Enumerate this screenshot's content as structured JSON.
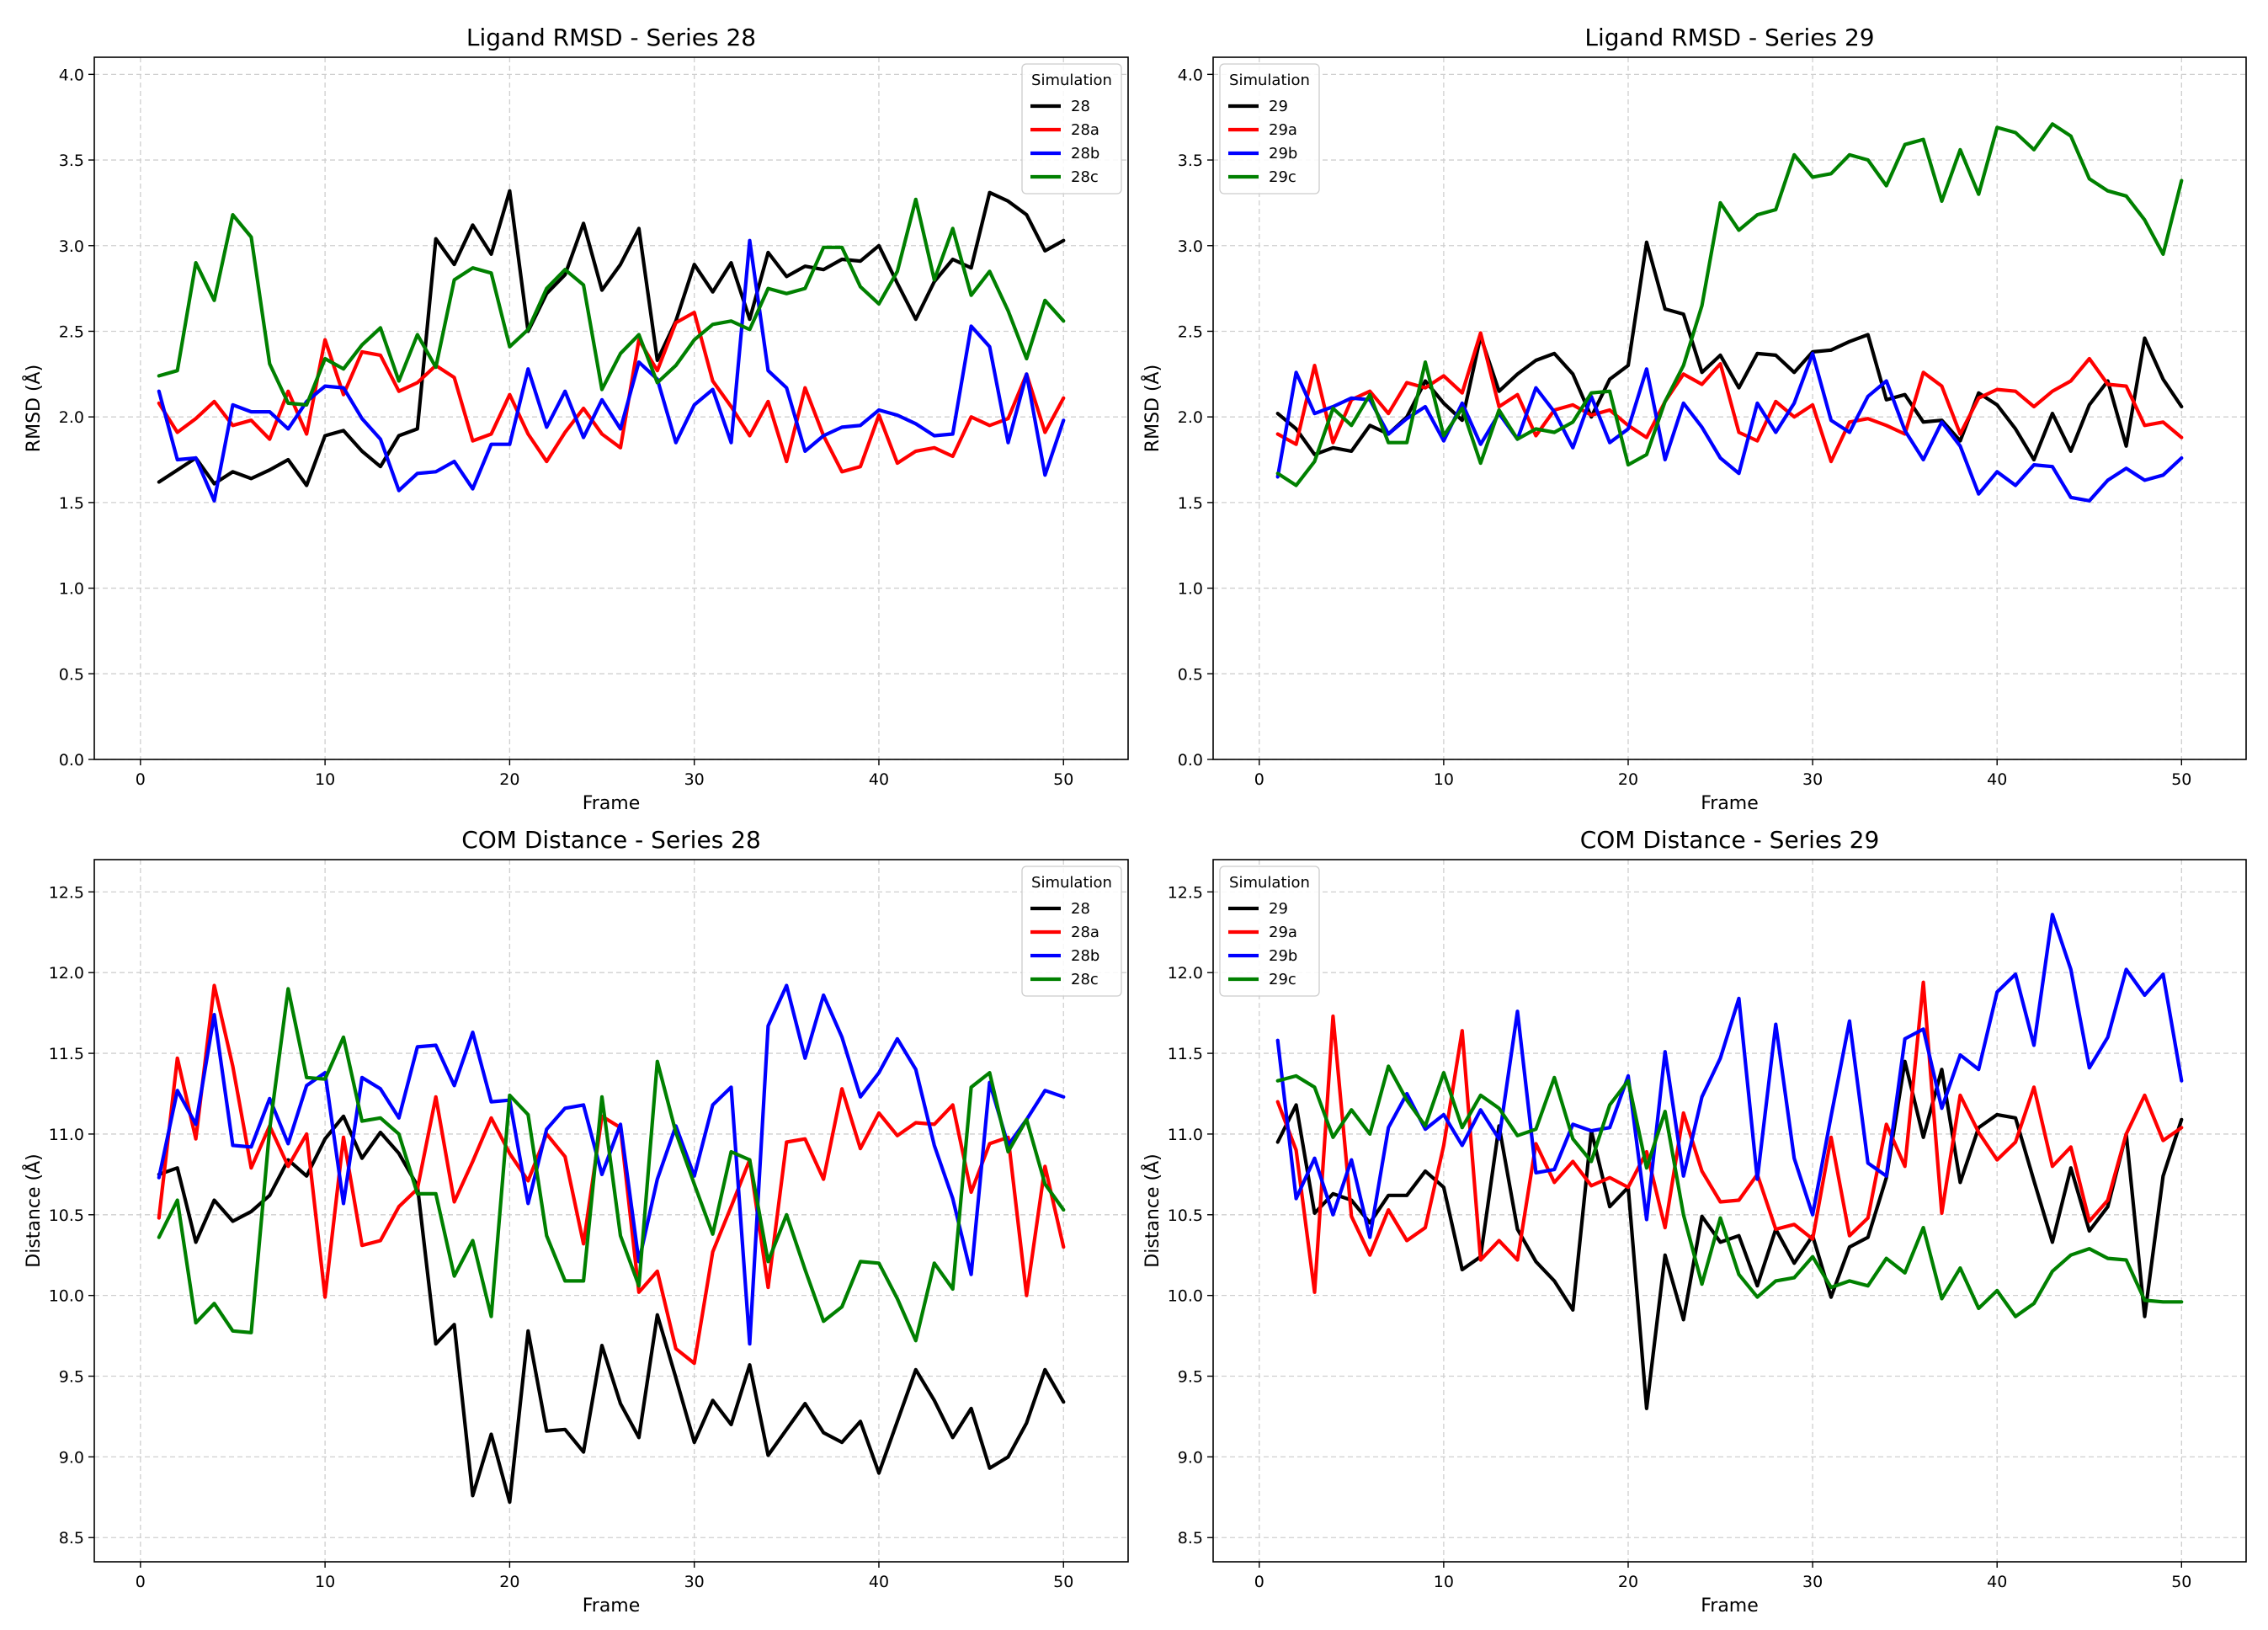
{
  "chart_data": [
    {
      "type": "line",
      "title": "Ligand RMSD - Series 28",
      "xlabel": "Frame",
      "ylabel": "RMSD (Å)",
      "xlim": [
        -2.5,
        53.5
      ],
      "ylim": [
        0,
        4.1
      ],
      "xticks": [
        0,
        10,
        20,
        30,
        40,
        50
      ],
      "yticks": [
        0.0,
        0.5,
        1.0,
        1.5,
        2.0,
        2.5,
        3.0,
        3.5,
        4.0
      ],
      "ytick_labels": [
        "0.0",
        "0.5",
        "1.0",
        "1.5",
        "2.0",
        "2.5",
        "3.0",
        "3.5",
        "4.0"
      ],
      "grid": true,
      "legend": {
        "title": "Simulation",
        "loc": "top-right"
      },
      "series": [
        {
          "name": "28",
          "color": "#000000",
          "values": [
            1.62,
            1.69,
            1.76,
            1.61,
            1.68,
            1.64,
            1.69,
            1.75,
            1.6,
            1.89,
            1.92,
            1.8,
            1.71,
            1.89,
            1.93,
            3.04,
            2.89,
            3.12,
            2.95,
            3.32,
            2.5,
            2.72,
            2.83,
            3.13,
            2.74,
            2.89,
            3.1,
            2.33,
            2.56,
            2.89,
            2.73,
            2.9,
            2.57,
            2.96,
            2.82,
            2.88,
            2.86,
            2.92,
            2.91,
            3.0,
            2.78,
            2.57,
            2.79,
            2.92,
            2.87,
            3.31,
            3.26,
            3.18,
            2.97,
            3.03
          ]
        },
        {
          "name": "28a",
          "color": "#ff0000",
          "values": [
            2.08,
            1.91,
            1.99,
            2.09,
            1.95,
            1.98,
            1.87,
            2.15,
            1.9,
            2.45,
            2.13,
            2.38,
            2.36,
            2.15,
            2.2,
            2.3,
            2.23,
            1.86,
            1.9,
            2.13,
            1.9,
            1.74,
            1.91,
            2.05,
            1.9,
            1.82,
            2.45,
            2.27,
            2.55,
            2.61,
            2.21,
            2.06,
            1.89,
            2.09,
            1.74,
            2.17,
            1.89,
            1.68,
            1.71,
            2.01,
            1.73,
            1.8,
            1.82,
            1.77,
            2.0,
            1.95,
            1.99,
            2.25,
            1.91,
            2.11
          ]
        },
        {
          "name": "28b",
          "color": "#0000ff",
          "values": [
            2.15,
            1.75,
            1.76,
            1.51,
            2.07,
            2.03,
            2.03,
            1.93,
            2.09,
            2.18,
            2.17,
            1.99,
            1.87,
            1.57,
            1.67,
            1.68,
            1.74,
            1.58,
            1.84,
            1.84,
            2.28,
            1.94,
            2.15,
            1.88,
            2.1,
            1.93,
            2.32,
            2.22,
            1.85,
            2.07,
            2.16,
            1.85,
            3.03,
            2.27,
            2.17,
            1.8,
            1.89,
            1.94,
            1.95,
            2.04,
            2.01,
            1.96,
            1.89,
            1.9,
            2.53,
            2.41,
            1.85,
            2.25,
            1.66,
            1.98
          ]
        },
        {
          "name": "28c",
          "color": "#008000",
          "values": [
            2.24,
            2.27,
            2.9,
            2.68,
            3.18,
            3.05,
            2.31,
            2.08,
            2.07,
            2.34,
            2.28,
            2.42,
            2.52,
            2.21,
            2.48,
            2.29,
            2.8,
            2.87,
            2.84,
            2.41,
            2.51,
            2.75,
            2.86,
            2.77,
            2.16,
            2.37,
            2.48,
            2.2,
            2.3,
            2.45,
            2.54,
            2.56,
            2.51,
            2.75,
            2.72,
            2.75,
            2.99,
            2.99,
            2.76,
            2.66,
            2.85,
            3.27,
            2.8,
            3.1,
            2.71,
            2.85,
            2.62,
            2.34,
            2.68,
            2.56
          ]
        }
      ]
    },
    {
      "type": "line",
      "title": "Ligand RMSD - Series 29",
      "xlabel": "Frame",
      "ylabel": "RMSD (Å)",
      "xlim": [
        -2.5,
        53.5
      ],
      "ylim": [
        0,
        4.1
      ],
      "xticks": [
        0,
        10,
        20,
        30,
        40,
        50
      ],
      "yticks": [
        0.0,
        0.5,
        1.0,
        1.5,
        2.0,
        2.5,
        3.0,
        3.5,
        4.0
      ],
      "ytick_labels": [
        "0.0",
        "0.5",
        "1.0",
        "1.5",
        "2.0",
        "2.5",
        "3.0",
        "3.5",
        "4.0"
      ],
      "grid": true,
      "legend": {
        "title": "Simulation",
        "loc": "top-left"
      },
      "series": [
        {
          "name": "29",
          "color": "#000000",
          "values": [
            2.02,
            1.93,
            1.78,
            1.82,
            1.8,
            1.95,
            1.9,
            2.0,
            2.21,
            2.08,
            1.98,
            2.47,
            2.15,
            2.25,
            2.33,
            2.37,
            2.25,
            2.0,
            2.22,
            2.3,
            3.02,
            2.63,
            2.6,
            2.26,
            2.36,
            2.17,
            2.37,
            2.36,
            2.26,
            2.38,
            2.39,
            2.44,
            2.48,
            2.1,
            2.13,
            1.97,
            1.98,
            1.86,
            2.14,
            2.07,
            1.93,
            1.75,
            2.02,
            1.8,
            2.07,
            2.21,
            1.83,
            2.46,
            2.22,
            2.06
          ]
        },
        {
          "name": "29a",
          "color": "#ff0000",
          "values": [
            1.9,
            1.84,
            2.3,
            1.85,
            2.1,
            2.15,
            2.02,
            2.2,
            2.17,
            2.24,
            2.14,
            2.49,
            2.06,
            2.13,
            1.89,
            2.04,
            2.07,
            2.01,
            2.04,
            1.95,
            1.88,
            2.09,
            2.25,
            2.19,
            2.31,
            1.91,
            1.86,
            2.09,
            2.0,
            2.07,
            1.74,
            1.97,
            1.99,
            1.95,
            1.9,
            2.26,
            2.18,
            1.9,
            2.11,
            2.16,
            2.15,
            2.06,
            2.15,
            2.21,
            2.34,
            2.19,
            2.18,
            1.95,
            1.97,
            1.88
          ]
        },
        {
          "name": "29b",
          "color": "#0000ff",
          "values": [
            1.65,
            2.26,
            2.02,
            2.06,
            2.11,
            2.1,
            1.9,
            1.99,
            2.06,
            1.86,
            2.08,
            1.84,
            2.02,
            1.87,
            2.17,
            2.03,
            1.82,
            2.12,
            1.85,
            1.93,
            2.28,
            1.75,
            2.08,
            1.94,
            1.76,
            1.67,
            2.08,
            1.91,
            2.08,
            2.37,
            1.98,
            1.91,
            2.12,
            2.21,
            1.92,
            1.75,
            1.97,
            1.83,
            1.55,
            1.68,
            1.6,
            1.72,
            1.71,
            1.53,
            1.51,
            1.63,
            1.7,
            1.63,
            1.66,
            1.76
          ]
        },
        {
          "name": "29c",
          "color": "#008000",
          "values": [
            1.67,
            1.6,
            1.74,
            2.05,
            1.95,
            2.13,
            1.85,
            1.85,
            2.32,
            1.89,
            2.05,
            1.73,
            2.04,
            1.87,
            1.93,
            1.91,
            1.97,
            2.14,
            2.15,
            1.72,
            1.78,
            2.09,
            2.3,
            2.65,
            3.25,
            3.09,
            3.18,
            3.21,
            3.53,
            3.4,
            3.42,
            3.53,
            3.5,
            3.35,
            3.59,
            3.62,
            3.26,
            3.56,
            3.3,
            3.69,
            3.66,
            3.56,
            3.71,
            3.64,
            3.39,
            3.32,
            3.29,
            3.15,
            2.95,
            3.38
          ]
        }
      ]
    },
    {
      "type": "line",
      "title": "COM Distance - Series 28",
      "xlabel": "Frame",
      "ylabel": "Distance (Å)",
      "xlim": [
        -2.5,
        53.5
      ],
      "ylim": [
        8.35,
        12.7
      ],
      "xticks": [
        0,
        10,
        20,
        30,
        40,
        50
      ],
      "yticks": [
        8.5,
        9.0,
        9.5,
        10.0,
        10.5,
        11.0,
        11.5,
        12.0,
        12.5
      ],
      "ytick_labels": [
        "8.5",
        "9.0",
        "9.5",
        "10.0",
        "10.5",
        "11.0",
        "11.5",
        "12.0",
        "12.5"
      ],
      "grid": true,
      "legend": {
        "title": "Simulation",
        "loc": "top-right"
      },
      "series": [
        {
          "name": "28",
          "color": "#000000",
          "values": [
            10.75,
            10.79,
            10.33,
            10.59,
            10.46,
            10.52,
            10.62,
            10.84,
            10.74,
            10.97,
            11.11,
            10.85,
            11.01,
            10.88,
            10.68,
            9.7,
            9.82,
            8.76,
            9.14,
            8.72,
            9.78,
            9.16,
            9.17,
            9.03,
            9.69,
            9.33,
            9.12,
            9.88,
            9.49,
            9.09,
            9.35,
            9.2,
            9.57,
            9.01,
            9.17,
            9.33,
            9.15,
            9.09,
            9.22,
            8.9,
            9.22,
            9.54,
            9.35,
            9.12,
            9.3,
            8.93,
            9.0,
            9.21,
            9.54,
            9.34
          ]
        },
        {
          "name": "28a",
          "color": "#ff0000",
          "values": [
            10.48,
            11.47,
            10.97,
            11.92,
            11.42,
            10.79,
            11.05,
            10.8,
            11.0,
            9.99,
            10.98,
            10.31,
            10.34,
            10.55,
            10.66,
            11.23,
            10.58,
            10.83,
            11.1,
            10.88,
            10.71,
            11.0,
            10.86,
            10.32,
            11.11,
            11.04,
            10.02,
            10.15,
            9.67,
            9.58,
            10.27,
            10.55,
            10.84,
            10.05,
            10.95,
            10.97,
            10.72,
            11.28,
            10.91,
            11.13,
            10.99,
            11.07,
            11.06,
            11.18,
            10.64,
            10.94,
            10.98,
            10.0,
            10.8,
            10.3
          ]
        },
        {
          "name": "28b",
          "color": "#0000ff",
          "values": [
            10.73,
            11.27,
            11.06,
            11.74,
            10.93,
            10.92,
            11.22,
            10.94,
            11.3,
            11.38,
            10.57,
            11.35,
            11.28,
            11.1,
            11.54,
            11.55,
            11.3,
            11.63,
            11.2,
            11.21,
            10.57,
            11.03,
            11.16,
            11.18,
            10.75,
            11.06,
            10.21,
            10.72,
            11.05,
            10.74,
            11.18,
            11.29,
            9.7,
            11.67,
            11.92,
            11.47,
            11.86,
            11.6,
            11.23,
            11.38,
            11.59,
            11.4,
            10.93,
            10.6,
            10.13,
            11.32,
            10.93,
            11.09,
            11.27,
            11.23
          ]
        },
        {
          "name": "28c",
          "color": "#008000",
          "values": [
            10.36,
            10.59,
            9.83,
            9.95,
            9.78,
            9.77,
            11.03,
            11.9,
            11.35,
            11.34,
            11.6,
            11.08,
            11.1,
            11.0,
            10.63,
            10.63,
            10.12,
            10.34,
            9.87,
            11.24,
            11.12,
            10.37,
            10.09,
            10.09,
            11.23,
            10.37,
            10.06,
            11.45,
            11.01,
            10.69,
            10.38,
            10.89,
            10.84,
            10.21,
            10.5,
            10.16,
            9.84,
            9.93,
            10.21,
            10.2,
            9.98,
            9.72,
            10.2,
            10.04,
            11.29,
            11.38,
            10.89,
            11.09,
            10.69,
            10.53
          ]
        }
      ]
    },
    {
      "type": "line",
      "title": "COM Distance - Series 29",
      "xlabel": "Frame",
      "ylabel": "Distance (Å)",
      "xlim": [
        -2.5,
        53.5
      ],
      "ylim": [
        8.35,
        12.7
      ],
      "xticks": [
        0,
        10,
        20,
        30,
        40,
        50
      ],
      "yticks": [
        8.5,
        9.0,
        9.5,
        10.0,
        10.5,
        11.0,
        11.5,
        12.0,
        12.5
      ],
      "ytick_labels": [
        "8.5",
        "9.0",
        "9.5",
        "10.0",
        "10.5",
        "11.0",
        "11.5",
        "12.0",
        "12.5"
      ],
      "grid": true,
      "legend": {
        "title": "Simulation",
        "loc": "top-left"
      },
      "series": [
        {
          "name": "29",
          "color": "#000000",
          "values": [
            10.95,
            11.18,
            10.51,
            10.63,
            10.59,
            10.45,
            10.62,
            10.62,
            10.77,
            10.67,
            10.16,
            10.24,
            11.05,
            10.41,
            10.21,
            10.09,
            9.91,
            11.02,
            10.55,
            10.67,
            9.3,
            10.25,
            9.85,
            10.49,
            10.33,
            10.37,
            10.06,
            10.41,
            10.2,
            10.37,
            9.99,
            10.3,
            10.36,
            10.73,
            11.45,
            10.98,
            11.4,
            10.7,
            11.04,
            11.12,
            11.1,
            10.71,
            10.33,
            10.79,
            10.4,
            10.55,
            11.0,
            9.87,
            10.74,
            11.09
          ]
        },
        {
          "name": "29a",
          "color": "#ff0000",
          "values": [
            11.2,
            10.9,
            10.02,
            11.73,
            10.49,
            10.25,
            10.53,
            10.34,
            10.42,
            10.93,
            11.64,
            10.22,
            10.34,
            10.22,
            10.94,
            10.7,
            10.83,
            10.68,
            10.73,
            10.67,
            10.89,
            10.42,
            11.13,
            10.77,
            10.58,
            10.59,
            10.75,
            10.41,
            10.44,
            10.35,
            10.98,
            10.37,
            10.48,
            11.06,
            10.8,
            11.94,
            10.51,
            11.24,
            11.01,
            10.84,
            10.95,
            11.29,
            10.8,
            10.92,
            10.46,
            10.59,
            11.0,
            11.24,
            10.96,
            11.04
          ]
        },
        {
          "name": "29b",
          "color": "#0000ff",
          "values": [
            11.58,
            10.6,
            10.85,
            10.5,
            10.84,
            10.36,
            11.04,
            11.25,
            11.03,
            11.12,
            10.93,
            11.15,
            10.97,
            11.76,
            10.76,
            10.78,
            11.06,
            11.02,
            11.04,
            11.36,
            10.47,
            11.51,
            10.74,
            11.23,
            11.47,
            11.84,
            10.72,
            11.68,
            10.85,
            10.5,
            11.11,
            11.7,
            10.82,
            10.74,
            11.59,
            11.65,
            11.16,
            11.49,
            11.4,
            11.88,
            11.99,
            11.55,
            12.36,
            12.02,
            11.41,
            11.6,
            12.02,
            11.86,
            11.99,
            11.33
          ]
        },
        {
          "name": "29c",
          "color": "#008000",
          "values": [
            11.33,
            11.36,
            11.29,
            10.98,
            11.15,
            11.0,
            11.42,
            11.21,
            11.05,
            11.38,
            11.04,
            11.24,
            11.16,
            10.99,
            11.03,
            11.35,
            10.97,
            10.83,
            11.18,
            11.33,
            10.79,
            11.14,
            10.5,
            10.07,
            10.48,
            10.13,
            9.99,
            10.09,
            10.11,
            10.24,
            10.05,
            10.09,
            10.06,
            10.23,
            10.14,
            10.42,
            9.98,
            10.17,
            9.92,
            10.03,
            9.87,
            9.95,
            10.15,
            10.25,
            10.29,
            10.23,
            10.22,
            9.97,
            9.96,
            9.96
          ]
        }
      ]
    }
  ]
}
